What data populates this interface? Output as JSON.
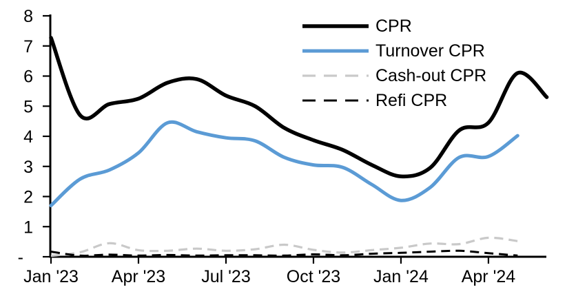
{
  "chart_data": {
    "type": "line",
    "title": "",
    "xlabel": "",
    "ylabel": "",
    "ylim": [
      0,
      8
    ],
    "grid": false,
    "legend_position": "top-right-inside",
    "y_ticks": [
      0,
      1,
      2,
      3,
      4,
      5,
      6,
      7,
      8
    ],
    "y_tick_labels": [
      "-",
      "1",
      "2",
      "3",
      "4",
      "5",
      "6",
      "7",
      "8"
    ],
    "x_tick_labels": [
      "Jan '23",
      "Apr '23",
      "Jul '23",
      "Oct '23",
      "Jan '24",
      "Apr '24"
    ],
    "x_tick_month_index": [
      0,
      3,
      6,
      9,
      12,
      15
    ],
    "categories": [
      "Jan '23",
      "Feb '23",
      "Mar '23",
      "Apr '23",
      "May '23",
      "Jun '23",
      "Jul '23",
      "Aug '23",
      "Sep '23",
      "Oct '23",
      "Nov '23",
      "Dec '23",
      "Jan '24",
      "Feb '24",
      "Mar '24",
      "Apr '24",
      "May '24",
      "Jun '24"
    ],
    "series": [
      {
        "id": "cpr",
        "name": "CPR",
        "color": "#000000",
        "width": 5.5,
        "dash": null,
        "legend_dash": null,
        "values": [
          7.27,
          4.7,
          5.07,
          5.25,
          5.78,
          5.9,
          5.35,
          5.0,
          4.28,
          3.87,
          3.55,
          3.05,
          2.67,
          2.95,
          4.2,
          4.45,
          6.1,
          5.3
        ]
      },
      {
        "id": "turnover-cpr",
        "name": "Turnover CPR",
        "color": "#5B9BD5",
        "width": 5,
        "dash": null,
        "legend_dash": null,
        "values": [
          1.7,
          2.58,
          2.88,
          3.45,
          4.45,
          4.15,
          3.95,
          3.85,
          3.3,
          3.05,
          2.97,
          2.4,
          1.87,
          2.3,
          3.3,
          3.33,
          4.02,
          null
        ]
      },
      {
        "id": "cashout-cpr",
        "name": "Cash-out CPR",
        "color": "#C9C9C9",
        "width": 3.2,
        "dash": "13 8",
        "legend_dash": "19 12",
        "values": [
          0.03,
          0.15,
          0.45,
          0.22,
          0.2,
          0.27,
          0.2,
          0.25,
          0.4,
          0.23,
          0.14,
          0.22,
          0.3,
          0.44,
          0.42,
          0.63,
          0.52,
          null
        ]
      },
      {
        "id": "refi-cpr",
        "name": "Refi CPR",
        "color": "#000000",
        "width": 3,
        "dash": "13 8",
        "legend_dash": "19 12",
        "values": [
          0.17,
          0.04,
          0.07,
          0.04,
          0.06,
          0.04,
          0.05,
          0.05,
          0.04,
          0.08,
          0.05,
          0.1,
          0.13,
          0.17,
          0.2,
          0.12,
          0.04,
          null
        ]
      }
    ]
  }
}
